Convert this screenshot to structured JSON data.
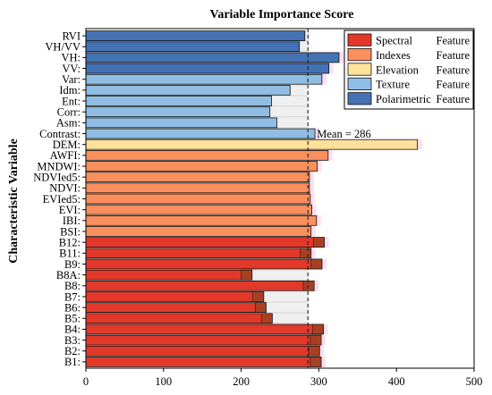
{
  "chart_data": {
    "type": "bar",
    "orientation": "horizontal",
    "title": "Variable Importance Score",
    "ylabel": "Characteristic Variable",
    "xlabel": "",
    "xlim": [
      0,
      500
    ],
    "xticks": [
      "0",
      "100",
      "200",
      "300",
      "400",
      "500"
    ],
    "mean": {
      "value": 286,
      "label": "Mean = 286"
    },
    "colors": {
      "Spectral": "#e2392a",
      "Indexes": "#fb8f5d",
      "Elevation": "#fee19a",
      "Texture": "#8fbde3",
      "Polarimetric": "#4472b5"
    },
    "legend": {
      "position": "top-right",
      "entries": [
        {
          "group": "Spectral",
          "name": "Spectral",
          "suffix": "Feature"
        },
        {
          "group": "Indexes",
          "name": "Indexes",
          "suffix": "Feature"
        },
        {
          "group": "Elevation",
          "name": "Elevation",
          "suffix": "Feature"
        },
        {
          "group": "Texture",
          "name": "Texture",
          "suffix": "Feature"
        },
        {
          "group": "Polarimetric",
          "name": "Polarimetric",
          "suffix": "Feature"
        }
      ]
    },
    "bars": [
      {
        "label": "RVI",
        "value": 282,
        "group": "Polarimetric"
      },
      {
        "label": "VH/VV",
        "value": 275,
        "group": "Polarimetric"
      },
      {
        "label": "VH:",
        "value": 326,
        "group": "Polarimetric"
      },
      {
        "label": "VV:",
        "value": 313,
        "group": "Polarimetric"
      },
      {
        "label": "Var:",
        "value": 304,
        "group": "Texture"
      },
      {
        "label": "Idm:",
        "value": 263,
        "group": "Texture"
      },
      {
        "label": "Ent:",
        "value": 239,
        "group": "Texture"
      },
      {
        "label": "Corr:",
        "value": 237,
        "group": "Texture"
      },
      {
        "label": "Asm:",
        "value": 246,
        "group": "Texture"
      },
      {
        "label": "Contrast:",
        "value": 295,
        "group": "Texture"
      },
      {
        "label": "DEM:",
        "value": 427,
        "group": "Elevation"
      },
      {
        "label": "AWFI:",
        "value": 312,
        "group": "Indexes"
      },
      {
        "label": "MNDWI:",
        "value": 298,
        "group": "Indexes"
      },
      {
        "label": "NDVIed5:",
        "value": 288,
        "group": "Indexes"
      },
      {
        "label": "NDVI:",
        "value": 288,
        "group": "Indexes"
      },
      {
        "label": "EVIed5:",
        "value": 289,
        "group": "Indexes"
      },
      {
        "label": "EVI:",
        "value": 291,
        "group": "Indexes"
      },
      {
        "label": "IBI:",
        "value": 297,
        "group": "Indexes"
      },
      {
        "label": "BSI:",
        "value": 290,
        "group": "Indexes"
      },
      {
        "label": "B12:",
        "value": 307,
        "group": "Spectral"
      },
      {
        "label": "B11:",
        "value": 290,
        "group": "Spectral"
      },
      {
        "label": "B9:",
        "value": 304,
        "group": "Spectral"
      },
      {
        "label": "B8A:",
        "value": 214,
        "group": "Spectral"
      },
      {
        "label": "B8:",
        "value": 294,
        "group": "Spectral"
      },
      {
        "label": "B7:",
        "value": 229,
        "group": "Spectral"
      },
      {
        "label": "B6:",
        "value": 232,
        "group": "Spectral"
      },
      {
        "label": "B5:",
        "value": 240,
        "group": "Spectral"
      },
      {
        "label": "B4:",
        "value": 306,
        "group": "Spectral"
      },
      {
        "label": "B3:",
        "value": 303,
        "group": "Spectral"
      },
      {
        "label": "B2:",
        "value": 301,
        "group": "Spectral"
      },
      {
        "label": "B1:",
        "value": 303,
        "group": "Spectral"
      }
    ]
  }
}
